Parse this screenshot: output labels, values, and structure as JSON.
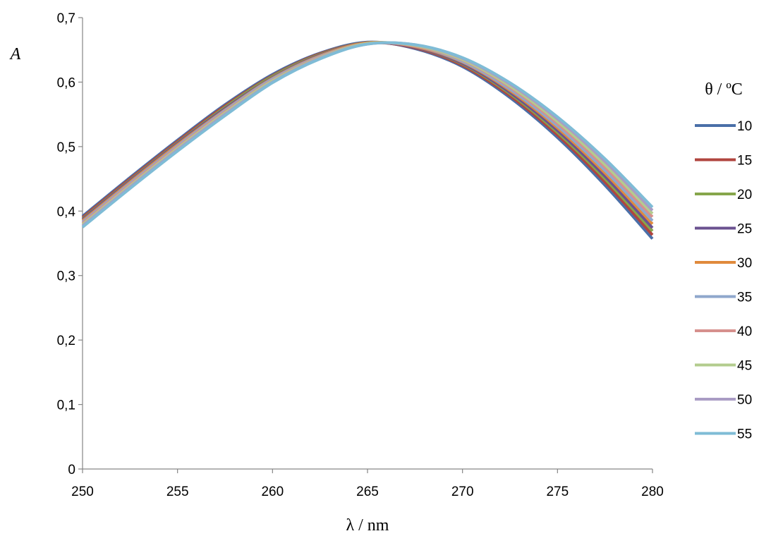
{
  "chart_data": {
    "type": "line",
    "xlabel": "λ / nm",
    "ylabel": "A",
    "xlim": [
      250,
      280
    ],
    "ylim": [
      0,
      0.7
    ],
    "x_ticks": [
      {
        "value": 250,
        "label": "250"
      },
      {
        "value": 255,
        "label": "255"
      },
      {
        "value": 260,
        "label": "260"
      },
      {
        "value": 265,
        "label": "265"
      },
      {
        "value": 270,
        "label": "270"
      },
      {
        "value": 275,
        "label": "275"
      },
      {
        "value": 280,
        "label": "280"
      }
    ],
    "y_ticks": [
      {
        "value": 0,
        "label": "0"
      },
      {
        "value": 0.1,
        "label": "0,1"
      },
      {
        "value": 0.2,
        "label": "0,2"
      },
      {
        "value": 0.3,
        "label": "0,3"
      },
      {
        "value": 0.4,
        "label": "0,4"
      },
      {
        "value": 0.5,
        "label": "0,5"
      },
      {
        "value": 0.6,
        "label": "0,6"
      },
      {
        "value": 0.7,
        "label": "0,7"
      }
    ],
    "grid": false,
    "legend_title": "θ / ºC",
    "legend_position": "right",
    "x": [
      250,
      252.5,
      255,
      257.5,
      260,
      262.5,
      265,
      267.5,
      270,
      272.5,
      275,
      277.5,
      280
    ],
    "series": [
      {
        "name": "10",
        "color": "#4a6fa8",
        "values": [
          0.392,
          0.452,
          0.51,
          0.565,
          0.612,
          0.645,
          0.662,
          0.652,
          0.624,
          0.576,
          0.514,
          0.44,
          0.357
        ]
      },
      {
        "name": "15",
        "color": "#b0453f",
        "values": [
          0.39,
          0.45,
          0.508,
          0.563,
          0.61,
          0.644,
          0.661,
          0.653,
          0.626,
          0.579,
          0.518,
          0.445,
          0.363
        ]
      },
      {
        "name": "20",
        "color": "#86a64b",
        "values": [
          0.388,
          0.448,
          0.506,
          0.561,
          0.609,
          0.643,
          0.661,
          0.654,
          0.628,
          0.582,
          0.522,
          0.45,
          0.369
        ]
      },
      {
        "name": "25",
        "color": "#6b5290",
        "values": [
          0.387,
          0.447,
          0.505,
          0.559,
          0.607,
          0.642,
          0.661,
          0.654,
          0.629,
          0.584,
          0.525,
          0.454,
          0.374
        ]
      },
      {
        "name": "30",
        "color": "#e08a3c",
        "values": [
          0.385,
          0.445,
          0.503,
          0.557,
          0.606,
          0.641,
          0.661,
          0.655,
          0.631,
          0.587,
          0.529,
          0.459,
          0.38
        ]
      },
      {
        "name": "35",
        "color": "#8fa7cc",
        "values": [
          0.383,
          0.443,
          0.501,
          0.556,
          0.605,
          0.64,
          0.66,
          0.656,
          0.632,
          0.589,
          0.532,
          0.463,
          0.385
        ]
      },
      {
        "name": "40",
        "color": "#d6908d",
        "values": [
          0.381,
          0.441,
          0.499,
          0.554,
          0.603,
          0.639,
          0.66,
          0.656,
          0.634,
          0.592,
          0.536,
          0.468,
          0.391
        ]
      },
      {
        "name": "45",
        "color": "#b3cc8e",
        "values": [
          0.379,
          0.439,
          0.497,
          0.552,
          0.602,
          0.638,
          0.66,
          0.657,
          0.635,
          0.594,
          0.539,
          0.472,
          0.396
        ]
      },
      {
        "name": "50",
        "color": "#a99cc4",
        "values": [
          0.377,
          0.437,
          0.495,
          0.55,
          0.6,
          0.637,
          0.659,
          0.658,
          0.637,
          0.597,
          0.543,
          0.477,
          0.401
        ]
      },
      {
        "name": "55",
        "color": "#7fbcd6",
        "values": [
          0.375,
          0.435,
          0.493,
          0.548,
          0.599,
          0.636,
          0.659,
          0.658,
          0.638,
          0.599,
          0.546,
          0.481,
          0.406
        ]
      }
    ]
  }
}
